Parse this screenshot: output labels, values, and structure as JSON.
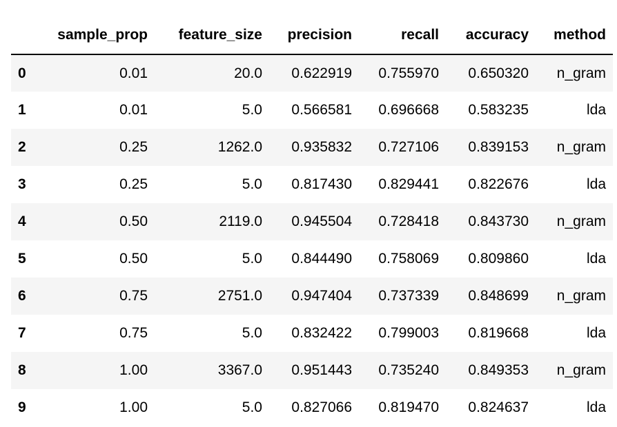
{
  "table": {
    "columns": [
      "",
      "sample_prop",
      "feature_size",
      "precision",
      "recall",
      "accuracy",
      "method"
    ],
    "rows": [
      {
        "index": "0",
        "sample_prop": "0.01",
        "feature_size": "20.0",
        "precision": "0.622919",
        "recall": "0.755970",
        "accuracy": "0.650320",
        "method": "n_gram"
      },
      {
        "index": "1",
        "sample_prop": "0.01",
        "feature_size": "5.0",
        "precision": "0.566581",
        "recall": "0.696668",
        "accuracy": "0.583235",
        "method": "lda"
      },
      {
        "index": "2",
        "sample_prop": "0.25",
        "feature_size": "1262.0",
        "precision": "0.935832",
        "recall": "0.727106",
        "accuracy": "0.839153",
        "method": "n_gram"
      },
      {
        "index": "3",
        "sample_prop": "0.25",
        "feature_size": "5.0",
        "precision": "0.817430",
        "recall": "0.829441",
        "accuracy": "0.822676",
        "method": "lda"
      },
      {
        "index": "4",
        "sample_prop": "0.50",
        "feature_size": "2119.0",
        "precision": "0.945504",
        "recall": "0.728418",
        "accuracy": "0.843730",
        "method": "n_gram"
      },
      {
        "index": "5",
        "sample_prop": "0.50",
        "feature_size": "5.0",
        "precision": "0.844490",
        "recall": "0.758069",
        "accuracy": "0.809860",
        "method": "lda"
      },
      {
        "index": "6",
        "sample_prop": "0.75",
        "feature_size": "2751.0",
        "precision": "0.947404",
        "recall": "0.737339",
        "accuracy": "0.848699",
        "method": "n_gram"
      },
      {
        "index": "7",
        "sample_prop": "0.75",
        "feature_size": "5.0",
        "precision": "0.832422",
        "recall": "0.799003",
        "accuracy": "0.819668",
        "method": "lda"
      },
      {
        "index": "8",
        "sample_prop": "1.00",
        "feature_size": "3367.0",
        "precision": "0.951443",
        "recall": "0.735240",
        "accuracy": "0.849353",
        "method": "n_gram"
      },
      {
        "index": "9",
        "sample_prop": "1.00",
        "feature_size": "5.0",
        "precision": "0.827066",
        "recall": "0.819470",
        "accuracy": "0.824637",
        "method": "lda"
      }
    ]
  }
}
